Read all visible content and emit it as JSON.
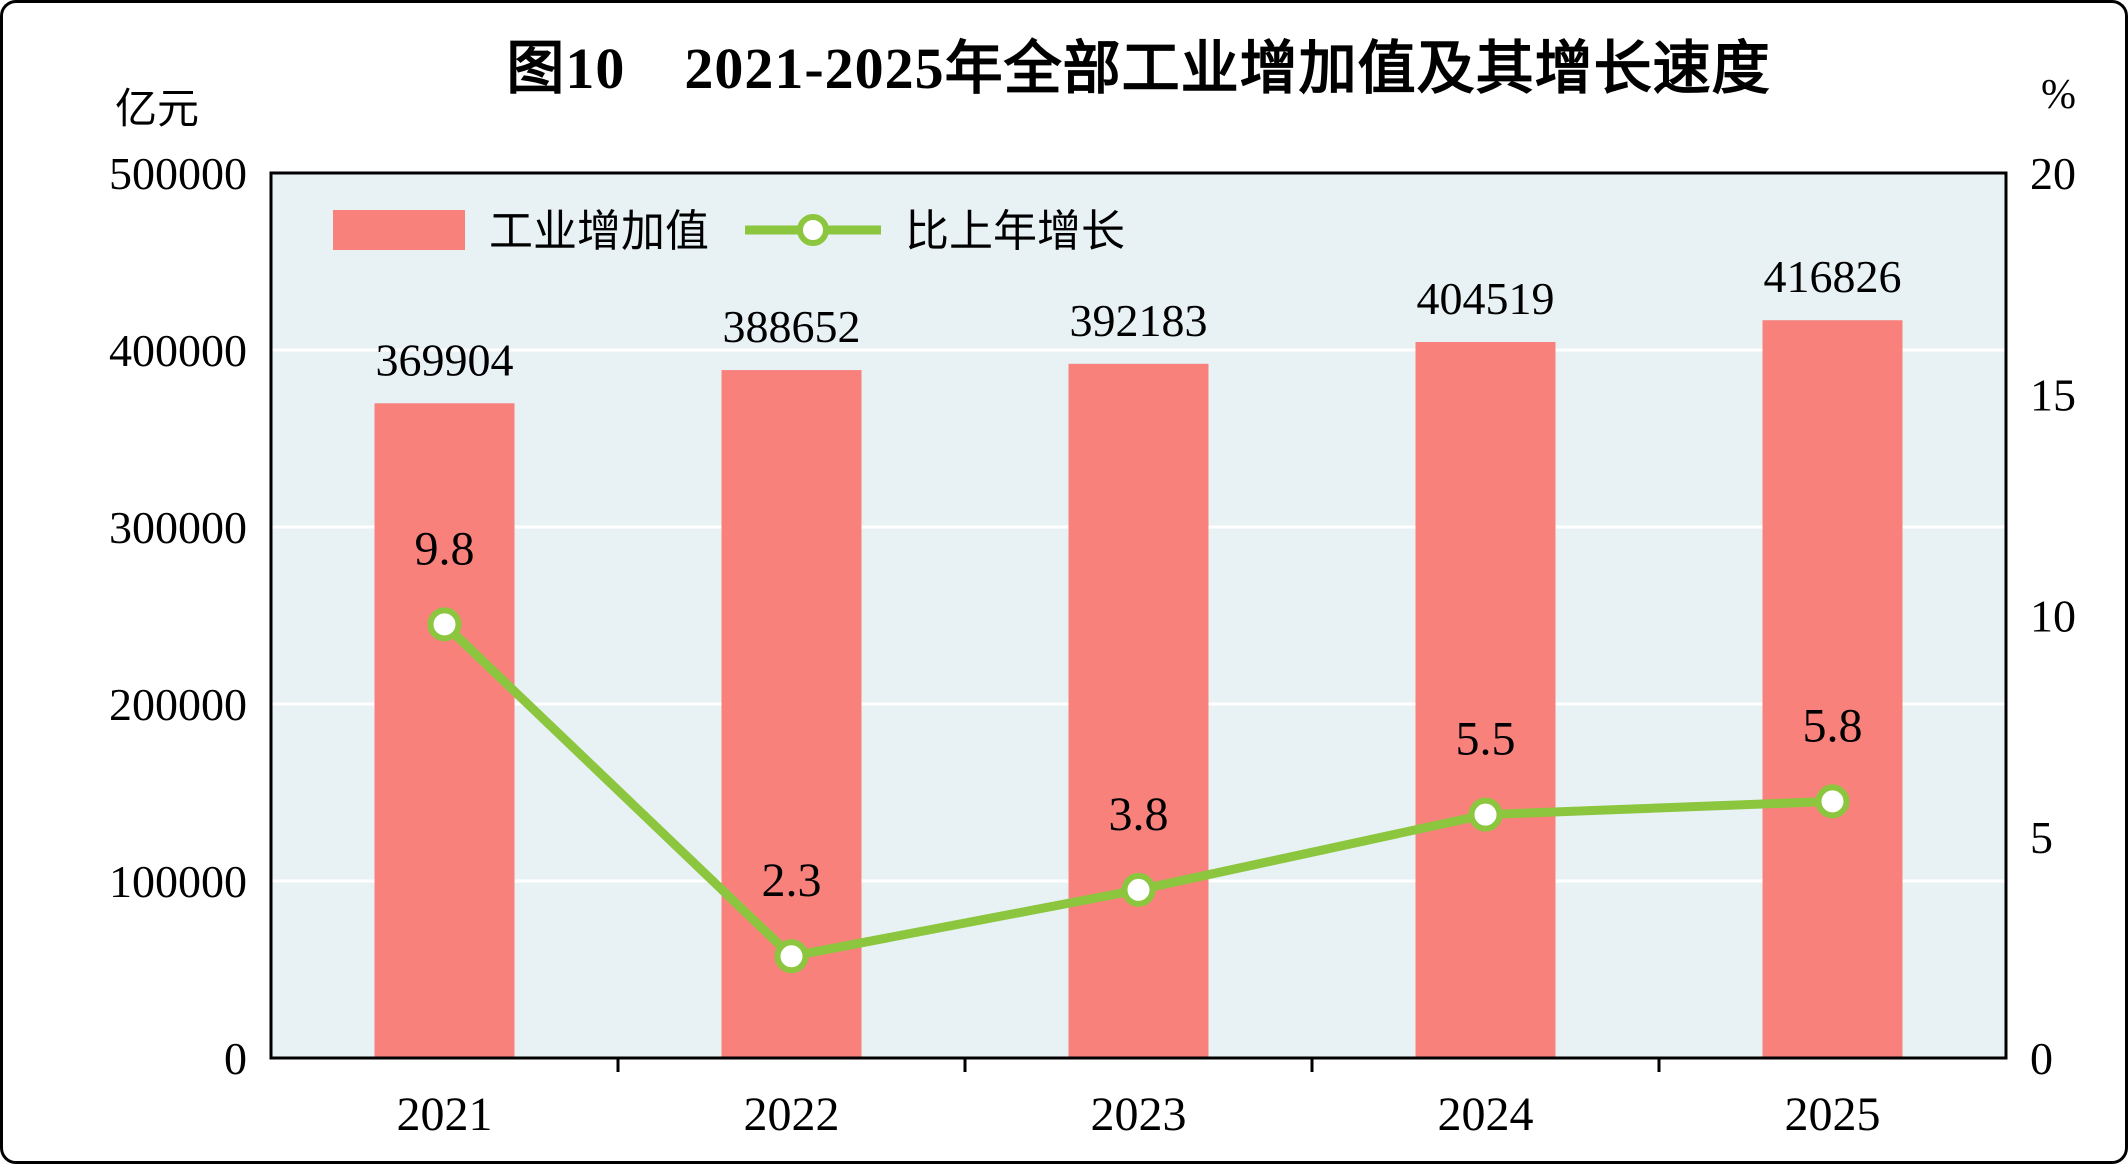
{
  "title": "图10　2021-2025年全部工业增加值及其增长速度",
  "left_axis_unit": "亿元",
  "right_axis_unit": "%",
  "legend": {
    "bar_label": "工业增加值",
    "line_label": "比上年增长"
  },
  "colors": {
    "bar": "#F8817B",
    "line": "#8CC63F",
    "marker_fill": "#FFFFFF",
    "plot_bg": "#E8F2F5",
    "grid": "#FFFFFF",
    "axis": "#000000",
    "text": "#000000"
  },
  "chart_data": {
    "type": "bar+line",
    "categories": [
      "2021",
      "2022",
      "2023",
      "2024",
      "2025"
    ],
    "series": [
      {
        "name": "工业增加值",
        "type": "bar",
        "axis": "left",
        "values": [
          369904,
          388652,
          392183,
          404519,
          416826
        ]
      },
      {
        "name": "比上年增长",
        "type": "line",
        "axis": "right",
        "values": [
          9.8,
          2.3,
          3.8,
          5.5,
          5.8
        ]
      }
    ],
    "left_axis": {
      "label": "亿元",
      "min": 0,
      "max": 500000,
      "step": 100000,
      "ticks": [
        0,
        100000,
        200000,
        300000,
        400000,
        500000
      ]
    },
    "right_axis": {
      "label": "%",
      "min": 0,
      "max": 20,
      "step": 5,
      "ticks": [
        0,
        5,
        10,
        15,
        20
      ]
    },
    "grid": true,
    "legend_position": "top-left-inside"
  }
}
